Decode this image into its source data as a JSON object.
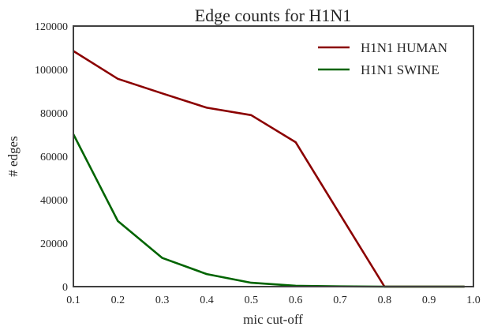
{
  "chart_data": {
    "type": "line",
    "title": "Edge counts for H1N1",
    "xlabel": "mic cut-off",
    "ylabel": "# edges",
    "xlim": [
      0.1,
      1.0
    ],
    "ylim": [
      0,
      120000
    ],
    "xticks": [
      "0.1",
      "0.2",
      "0.3",
      "0.4",
      "0.5",
      "0.6",
      "0.7",
      "0.8",
      "0.9",
      "1.0"
    ],
    "yticks": [
      "0",
      "20000",
      "40000",
      "60000",
      "80000",
      "100000",
      "120000"
    ],
    "grid": false,
    "legend_position": "upper right",
    "x": [
      0.1,
      0.2,
      0.3,
      0.4,
      0.5,
      0.6,
      0.7,
      0.8,
      0.9,
      0.98
    ],
    "series": [
      {
        "name": "H1N1 HUMAN",
        "color": "#8b0000",
        "values": [
          108500,
          95700,
          89000,
          82400,
          79000,
          66500,
          33200,
          0,
          0,
          0
        ]
      },
      {
        "name": "H1N1 SWINE",
        "color": "#006400",
        "values": [
          70200,
          30200,
          13200,
          5800,
          1800,
          400,
          100,
          0,
          0,
          0
        ]
      }
    ]
  }
}
